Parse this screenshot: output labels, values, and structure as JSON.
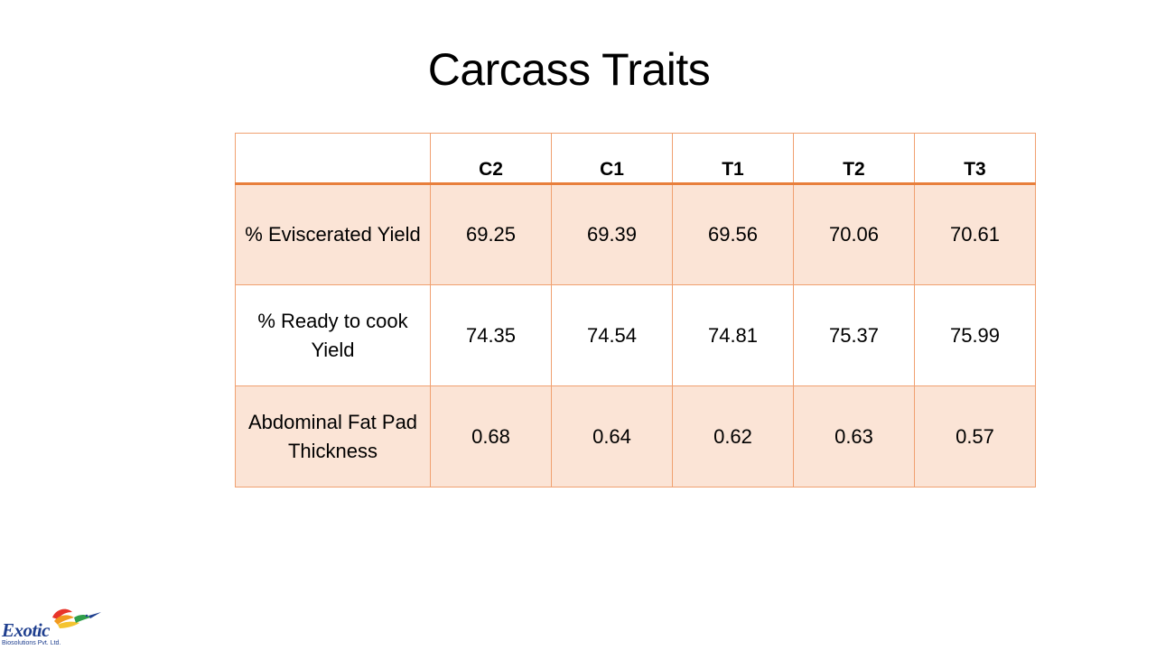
{
  "slide": {
    "title": "Carcass Traits"
  },
  "table": {
    "corner": "",
    "columns": [
      "C2",
      "C1",
      "T1",
      "T2",
      "T3"
    ],
    "rows": [
      {
        "label": "% Eviscerated Yield",
        "values": [
          "69.25",
          "69.39",
          "69.56",
          "70.06",
          "70.61"
        ]
      },
      {
        "label": "% Ready to cook Yield",
        "values": [
          "74.35",
          "74.54",
          "74.81",
          "75.37",
          "75.99"
        ]
      },
      {
        "label": "Abdominal Fat Pad Thickness",
        "values": [
          "0.68",
          "0.64",
          "0.62",
          "0.63",
          "0.57"
        ]
      }
    ]
  },
  "logo": {
    "name": "Exotic",
    "subtitle": "Biosolutions Pvt. Ltd."
  },
  "colors": {
    "border": "#f0a070",
    "header_rule": "#e87f3c",
    "shaded_row": "#fbe4d6",
    "logo_blue": "#1f3f8f"
  }
}
